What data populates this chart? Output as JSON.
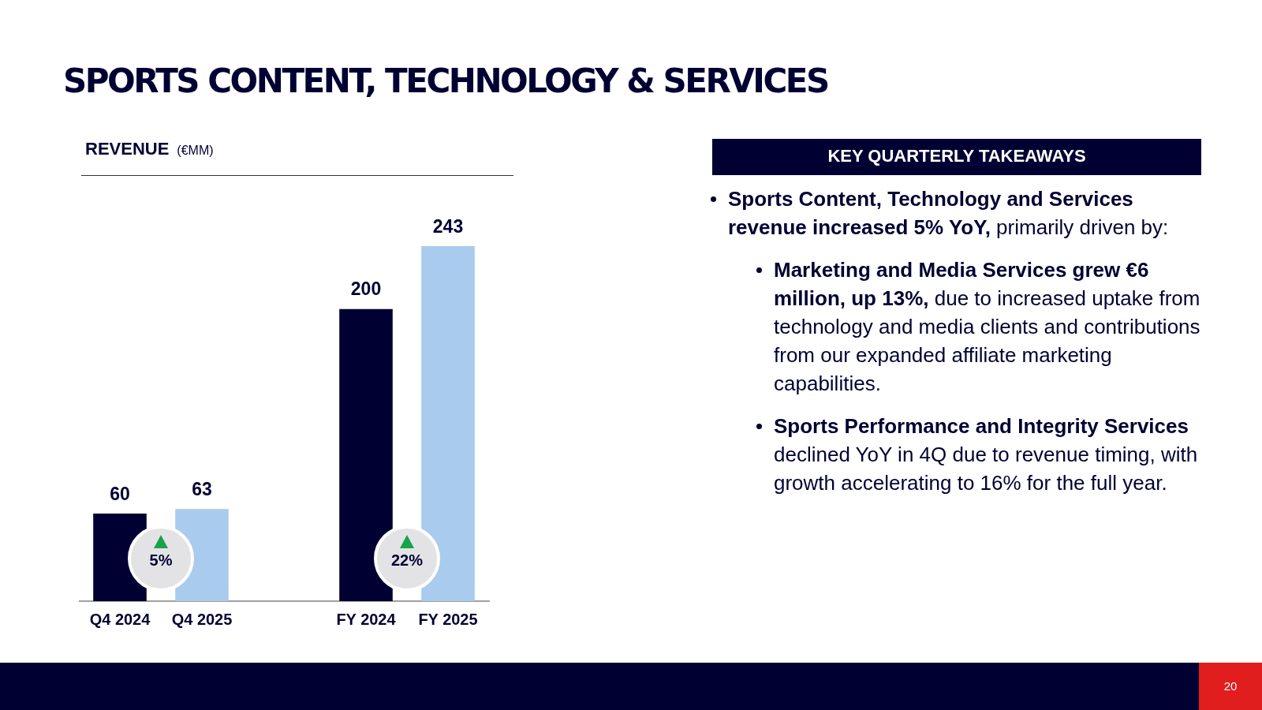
{
  "chart_data": [
    {
      "type": "bar",
      "title": "SPORTS CONTENT, TECHNOLOGY & SERVICES",
      "subtitle": "REVENUE",
      "ylabel": "(€MM)",
      "categories": [
        "Q4 2024",
        "Q4 2025",
        null,
        "FY 2024",
        "FY 2025"
      ],
      "values": [
        60,
        63,
        null,
        200,
        243
      ],
      "colors": [
        "#000033",
        "#a9cbed",
        "#000033",
        "#000033",
        "#a9cbed"
      ],
      "data_labels": true,
      "grid": false,
      "legend": false,
      "annotations": [
        "5%",
        "22%"
      ]
    },
    {
      "type": "other",
      "title": "KEY QUARTERLY TAKEAWAYS",
      "annotations": [
        "Sports Content, Technology and Services revenue increased 5% YoY,",
        " primarily driven by:",
        "Marketing and Media Services grew €6 million, up 13%,",
        " due to increased uptake from technology and media clients and contributions from our expanded affiliate marketing capabilities.",
        "Sports Performance and Integrity Services",
        " declined YoY in 4Q due to revenue timing, with growth accelerating to 16% for  the full year.",
        "20"
      ]
    }
  ]
}
